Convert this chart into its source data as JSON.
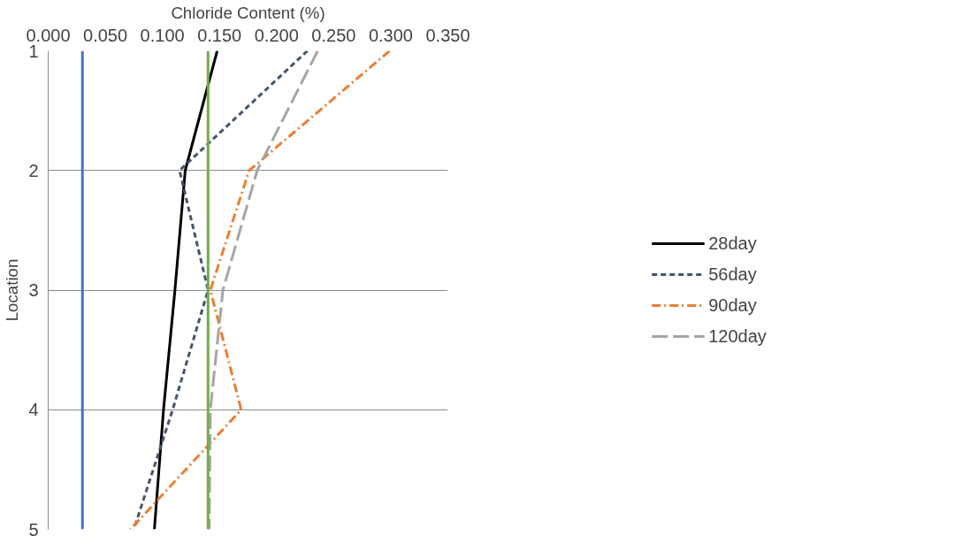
{
  "chart_data": {
    "type": "line",
    "xlabel": "Chloride Content (%)",
    "ylabel": "Location",
    "xlim": [
      0,
      0.35
    ],
    "xticks": [
      {
        "value": 0,
        "label": "0.000"
      },
      {
        "value": 0.05,
        "label": "0.050"
      },
      {
        "value": 0.1,
        "label": "0.100"
      },
      {
        "value": 0.15,
        "label": "0.150"
      },
      {
        "value": 0.2,
        "label": "0.200"
      },
      {
        "value": 0.25,
        "label": "0.250"
      },
      {
        "value": 0.3,
        "label": "0.300"
      },
      {
        "value": 0.35,
        "label": "0.350"
      }
    ],
    "ylim": [
      5,
      1
    ],
    "yticks": [
      1,
      2,
      3,
      4,
      5
    ],
    "grid": "y",
    "legend": "right",
    "series": [
      {
        "name": "28day",
        "color": "#000000",
        "line_style": "solid",
        "x": [
          0.148,
          0.12,
          0.111,
          0.101,
          0.093
        ],
        "values": [
          1,
          2,
          3,
          4,
          5
        ]
      },
      {
        "name": "56day",
        "color": "#44546a",
        "line_style": "dashed",
        "x": [
          0.227,
          0.115,
          0.14,
          0.109,
          0.075
        ],
        "values": [
          1,
          2,
          3,
          4,
          5
        ]
      },
      {
        "name": "90day",
        "color": "#ed7d31",
        "line_style": "dashdot",
        "x": [
          0.299,
          0.176,
          0.142,
          0.169,
          0.072
        ],
        "values": [
          1,
          2,
          3,
          4,
          5
        ]
      },
      {
        "name": "120day",
        "color": "#a5a5a5",
        "line_style": "longdash",
        "x": [
          0.236,
          0.183,
          0.153,
          0.142,
          0.141
        ],
        "values": [
          1,
          2,
          3,
          4,
          5
        ]
      }
    ],
    "ref_lines": [
      {
        "axis": "x",
        "value": 0.03,
        "label": null,
        "color": "#4472c4"
      },
      {
        "axis": "x",
        "value": 0.14,
        "label": null,
        "color": "#70ad47"
      }
    ]
  }
}
